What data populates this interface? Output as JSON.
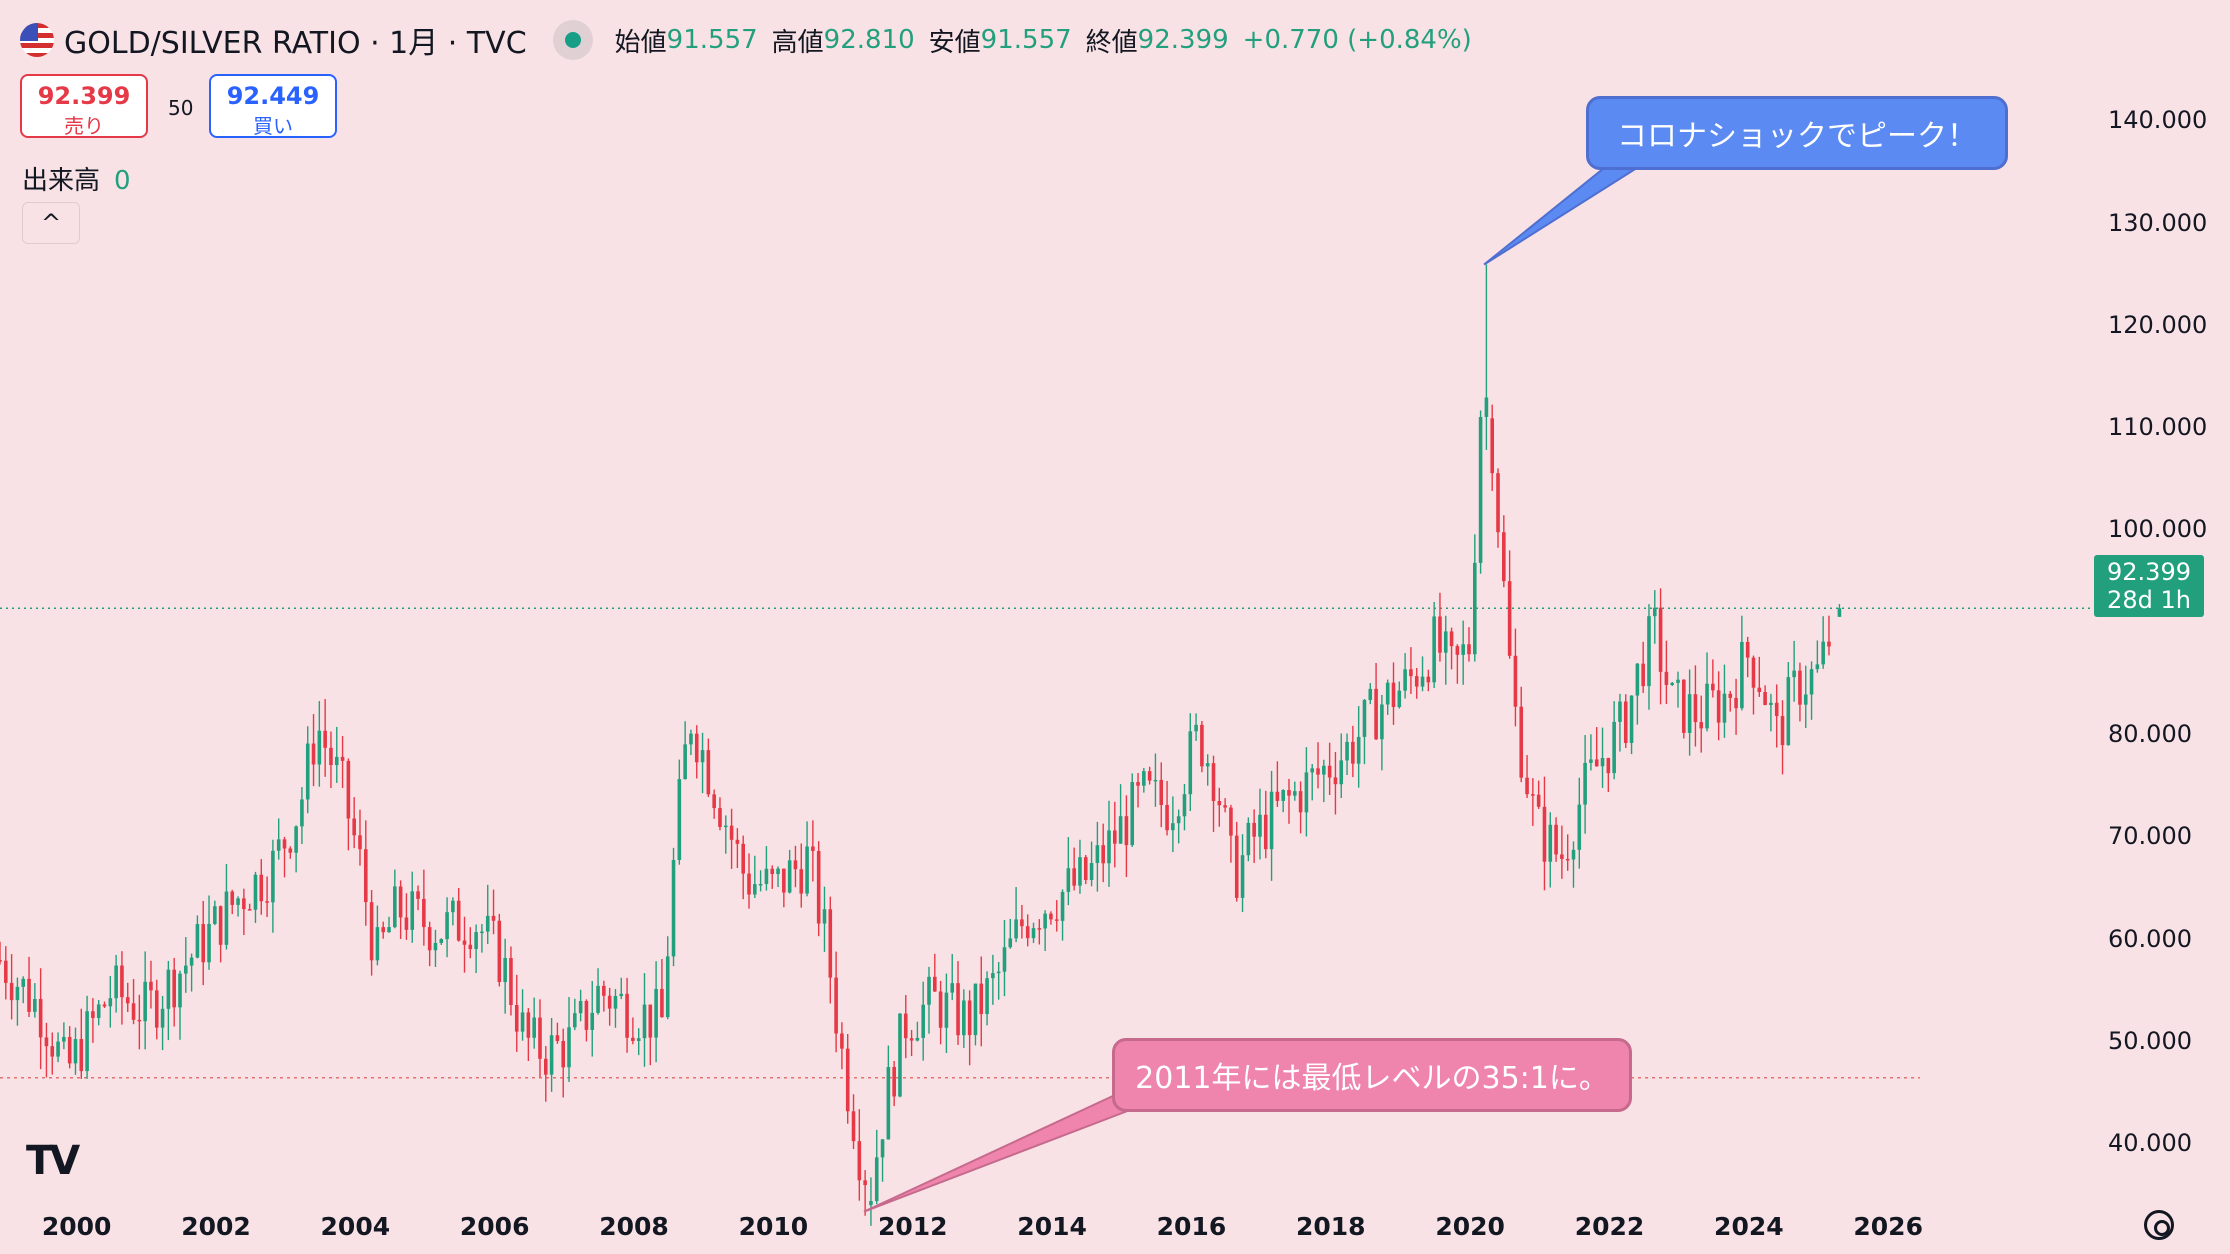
{
  "header": {
    "symbol": "GOLD/SILVER RATIO · 1月 · TVC",
    "open_label": "始値",
    "open": "91.557",
    "high_label": "高値",
    "high": "92.810",
    "low_label": "安値",
    "low": "91.557",
    "close_label": "終値",
    "close": "92.399",
    "change": "+0.770 (+0.84%)"
  },
  "trade": {
    "sell_price": "92.399",
    "sell_label": "売り",
    "spread": "50",
    "buy_price": "92.449",
    "buy_label": "買い"
  },
  "volume": {
    "label": "出来高",
    "value": "0"
  },
  "collapse_icon": "chevron-up-icon",
  "price_axis": {
    "ticks": [
      "140.000",
      "130.000",
      "120.000",
      "110.000",
      "100.000",
      "92.399",
      "80.000",
      "70.000",
      "60.000",
      "50.000",
      "40.000"
    ],
    "current_price": "92.399",
    "countdown": "28d 1h"
  },
  "time_axis": {
    "ticks": [
      "2000",
      "2002",
      "2004",
      "2006",
      "2008",
      "2010",
      "2012",
      "2014",
      "2016",
      "2018",
      "2020",
      "2022",
      "2024",
      "2026"
    ]
  },
  "annotations": {
    "peak": "コロナショックでピーク！",
    "low": "2011年には最低レベルの35:1に。"
  },
  "logo_text": "TV",
  "colors": {
    "up": "#22a07d",
    "down": "#e53947",
    "background": "#f9e2e5",
    "peak_bubble": "#5b8af2",
    "low_bubble": "#ef84ac"
  },
  "chart_data": {
    "type": "candlestick",
    "title": "GOLD/SILVER RATIO",
    "interval": "1月",
    "ylim": [
      32,
      146
    ],
    "xlim": [
      1998.9,
      2026.6
    ],
    "grid": false,
    "current_price_line": 92.399,
    "horizontal_line": 46.5,
    "anchors": [
      [
        1998.9,
        58
      ],
      [
        1999.5,
        53
      ],
      [
        1999.85,
        47
      ],
      [
        2000.5,
        55
      ],
      [
        2001.0,
        53
      ],
      [
        2001.6,
        58
      ],
      [
        2002.3,
        64
      ],
      [
        2002.8,
        67
      ],
      [
        2003.2,
        73
      ],
      [
        2003.45,
        81
      ],
      [
        2003.8,
        75
      ],
      [
        2004.05,
        68
      ],
      [
        2004.3,
        58
      ],
      [
        2004.6,
        63
      ],
      [
        2005.2,
        61
      ],
      [
        2005.7,
        62
      ],
      [
        2006.1,
        58
      ],
      [
        2006.45,
        50
      ],
      [
        2006.75,
        49
      ],
      [
        2007.1,
        50
      ],
      [
        2007.5,
        55
      ],
      [
        2008.0,
        53
      ],
      [
        2008.4,
        52
      ],
      [
        2008.6,
        70
      ],
      [
        2008.8,
        82
      ],
      [
        2009.0,
        78
      ],
      [
        2009.3,
        72
      ],
      [
        2009.6,
        66
      ],
      [
        2010.0,
        65
      ],
      [
        2010.5,
        68
      ],
      [
        2010.75,
        60
      ],
      [
        2011.0,
        48
      ],
      [
        2011.2,
        41
      ],
      [
        2011.35,
        34
      ],
      [
        2011.6,
        44
      ],
      [
        2011.9,
        52
      ],
      [
        2012.3,
        54
      ],
      [
        2012.8,
        52
      ],
      [
        2013.2,
        56
      ],
      [
        2013.6,
        62
      ],
      [
        2014.0,
        64
      ],
      [
        2014.5,
        66
      ],
      [
        2014.9,
        70
      ],
      [
        2015.3,
        74
      ],
      [
        2015.7,
        73
      ],
      [
        2016.1,
        80
      ],
      [
        2016.35,
        76
      ],
      [
        2016.6,
        66
      ],
      [
        2016.9,
        70
      ],
      [
        2017.3,
        73
      ],
      [
        2017.8,
        76
      ],
      [
        2018.3,
        79
      ],
      [
        2018.7,
        83
      ],
      [
        2019.1,
        85
      ],
      [
        2019.5,
        89
      ],
      [
        2019.75,
        86
      ],
      [
        2020.0,
        89
      ],
      [
        2020.15,
        112
      ],
      [
        2020.3,
        110
      ],
      [
        2020.45,
        97
      ],
      [
        2020.6,
        84
      ],
      [
        2020.75,
        78
      ],
      [
        2020.95,
        71
      ],
      [
        2021.3,
        68
      ],
      [
        2021.6,
        74
      ],
      [
        2021.9,
        78
      ],
      [
        2022.2,
        81
      ],
      [
        2022.45,
        87
      ],
      [
        2022.65,
        90
      ],
      [
        2022.9,
        83
      ],
      [
        2023.3,
        82
      ],
      [
        2023.7,
        84
      ],
      [
        2024.0,
        88
      ],
      [
        2024.2,
        85
      ],
      [
        2024.4,
        80
      ],
      [
        2024.7,
        85
      ],
      [
        2025.0,
        86
      ],
      [
        2025.25,
        91.6
      ]
    ],
    "events": [
      {
        "date": 2020.2,
        "high": 126,
        "close": 113
      },
      {
        "date": 2011.3,
        "low": 33,
        "close": 36
      },
      {
        "date": 2025.3,
        "open": 91.557,
        "high": 92.81,
        "low": 91.557,
        "close": 92.399
      }
    ]
  }
}
